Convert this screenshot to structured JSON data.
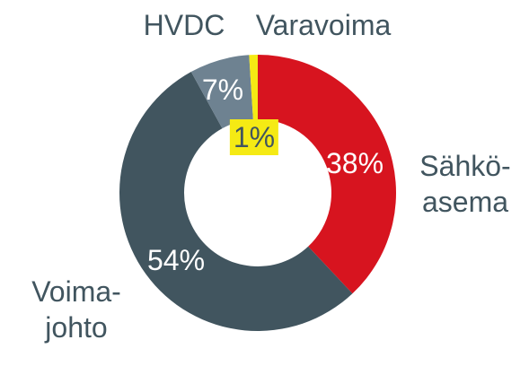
{
  "chart_data": {
    "type": "donut",
    "categories": [
      "Sähkö-\nasema",
      "Voima-\njohto",
      "HVDC",
      "Varavoima"
    ],
    "values": [
      38,
      54,
      7,
      1
    ],
    "value_labels": [
      "38%",
      "54%",
      "7%",
      "1%"
    ],
    "colors": [
      "#d7141f",
      "#41555f",
      "#6e8291",
      "#f5ea14"
    ]
  }
}
